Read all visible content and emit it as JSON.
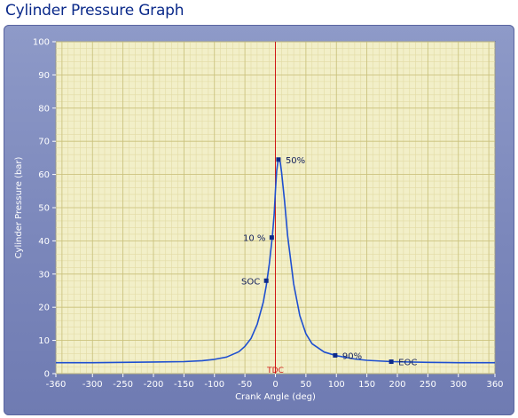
{
  "window": {
    "title": "Cylinder Pressure Graph"
  },
  "chart_data": {
    "type": "line",
    "xlabel": "Crank Angle (deg)",
    "ylabel": "Cylinder Pressure (bar)",
    "xlim": [
      -360,
      360
    ],
    "ylim": [
      0,
      100
    ],
    "xticks": [
      -360,
      -300,
      -250,
      -200,
      -150,
      -100,
      -50,
      0,
      50,
      100,
      150,
      200,
      250,
      300,
      360
    ],
    "yticks": [
      0,
      10,
      20,
      30,
      40,
      50,
      60,
      70,
      80,
      90,
      100
    ],
    "grid": true,
    "reference_line": {
      "x": 0,
      "label": "TDC",
      "color": "#d01818"
    },
    "series": [
      {
        "color": "#1e4fd0",
        "x": [
          -360,
          -300,
          -250,
          -200,
          -150,
          -120,
          -100,
          -80,
          -60,
          -50,
          -40,
          -30,
          -20,
          -15,
          -10,
          -5,
          -2,
          0,
          2,
          4,
          6,
          8,
          10,
          15,
          20,
          30,
          40,
          50,
          60,
          80,
          100,
          130,
          150,
          190,
          250,
          300,
          360
        ],
        "y": [
          3.3,
          3.3,
          3.4,
          3.5,
          3.6,
          3.9,
          4.3,
          5.0,
          6.6,
          8.2,
          10.6,
          14.8,
          21.5,
          26.5,
          33.0,
          41.5,
          48.0,
          55.0,
          61.0,
          63.8,
          64.5,
          63.6,
          60.8,
          52.0,
          41.5,
          27.0,
          17.5,
          12.0,
          9.0,
          6.5,
          5.4,
          4.4,
          4.0,
          3.6,
          3.4,
          3.3,
          3.3
        ]
      }
    ],
    "markers": [
      {
        "label": "SOC",
        "x": -15,
        "y": 28
      },
      {
        "label": "10 %",
        "x": -6,
        "y": 41
      },
      {
        "label": "50%",
        "x": 5,
        "y": 64.5
      },
      {
        "label": "90%",
        "x": 98,
        "y": 5.5
      },
      {
        "label": "EOC",
        "x": 190,
        "y": 3.6
      }
    ]
  }
}
